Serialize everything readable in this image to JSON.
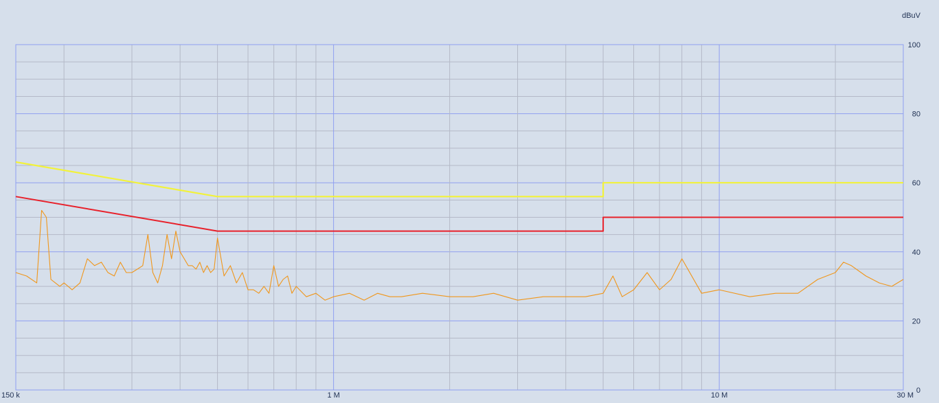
{
  "chart_data": {
    "type": "line",
    "title": "",
    "xlabel": "",
    "ylabel": "",
    "unit_label": "dBuV",
    "x_scale": "log",
    "xlim_hz": [
      150000,
      30000000
    ],
    "ylim": [
      0,
      100
    ],
    "grid": true,
    "x_tick_labels": [
      {
        "hz": 150000,
        "label": "150 k"
      },
      {
        "hz": 1000000,
        "label": "1 M"
      },
      {
        "hz": 10000000,
        "label": "10 M"
      },
      {
        "hz": 30000000,
        "label": "30 M"
      }
    ],
    "y_ticks": [
      0,
      20,
      40,
      60,
      80,
      100
    ],
    "colors": {
      "background": "#d6dfeb",
      "major_grid": "#8f9ff0",
      "minor_grid": "#b4b9c7",
      "quasi_peak_limit": "#f2f23a",
      "average_limit": "#e8202a",
      "measurement": "#f0961a"
    },
    "series": [
      {
        "id": "quasi_peak_limit",
        "x_hz": [
          150000,
          500000,
          500000,
          5000000,
          5000000,
          30000000
        ],
        "y": [
          66,
          56,
          56,
          56,
          60,
          60
        ]
      },
      {
        "id": "average_limit",
        "x_hz": [
          150000,
          500000,
          500000,
          5000000,
          5000000,
          30000000
        ],
        "y": [
          56,
          46,
          46,
          46,
          50,
          50
        ]
      },
      {
        "id": "measurement",
        "x_hz": [
          150000,
          160000,
          170000,
          175000,
          180000,
          185000,
          190000,
          195000,
          200000,
          210000,
          220000,
          230000,
          240000,
          250000,
          260000,
          270000,
          280000,
          290000,
          300000,
          310000,
          320000,
          330000,
          340000,
          350000,
          360000,
          370000,
          380000,
          390000,
          400000,
          410000,
          420000,
          430000,
          440000,
          450000,
          460000,
          470000,
          480000,
          490000,
          500000,
          520000,
          540000,
          560000,
          580000,
          600000,
          620000,
          640000,
          660000,
          680000,
          700000,
          720000,
          740000,
          760000,
          780000,
          800000,
          850000,
          900000,
          950000,
          1000000,
          1100000,
          1200000,
          1300000,
          1400000,
          1500000,
          1700000,
          2000000,
          2300000,
          2600000,
          3000000,
          3500000,
          4000000,
          4500000,
          5000000,
          5300000,
          5600000,
          6000000,
          6500000,
          7000000,
          7500000,
          8000000,
          9000000,
          10000000,
          12000000,
          14000000,
          16000000,
          18000000,
          20000000,
          21000000,
          22000000,
          24000000,
          26000000,
          28000000,
          30000000
        ],
        "y": [
          34,
          33,
          31,
          52,
          50,
          32,
          31,
          30,
          31,
          29,
          31,
          38,
          36,
          37,
          34,
          33,
          37,
          34,
          34,
          35,
          36,
          45,
          34,
          31,
          36,
          45,
          38,
          46,
          40,
          38,
          36,
          36,
          35,
          37,
          34,
          36,
          34,
          35,
          44,
          33,
          36,
          31,
          34,
          29,
          29,
          28,
          30,
          28,
          36,
          30,
          32,
          33,
          28,
          30,
          27,
          28,
          26,
          27,
          28,
          26,
          28,
          27,
          27,
          28,
          27,
          27,
          28,
          26,
          27,
          27,
          27,
          28,
          33,
          27,
          29,
          34,
          29,
          32,
          38,
          28,
          29,
          27,
          28,
          28,
          32,
          34,
          37,
          36,
          33,
          31,
          30,
          32
        ]
      }
    ]
  }
}
